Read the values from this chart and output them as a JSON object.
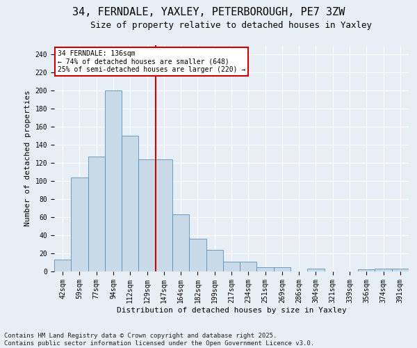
{
  "title_line1": "34, FERNDALE, YAXLEY, PETERBOROUGH, PE7 3ZW",
  "title_line2": "Size of property relative to detached houses in Yaxley",
  "xlabel": "Distribution of detached houses by size in Yaxley",
  "ylabel": "Number of detached properties",
  "categories": [
    "42sqm",
    "59sqm",
    "77sqm",
    "94sqm",
    "112sqm",
    "129sqm",
    "147sqm",
    "164sqm",
    "182sqm",
    "199sqm",
    "217sqm",
    "234sqm",
    "251sqm",
    "269sqm",
    "286sqm",
    "304sqm",
    "321sqm",
    "339sqm",
    "356sqm",
    "374sqm",
    "391sqm"
  ],
  "values": [
    13,
    104,
    127,
    200,
    150,
    124,
    124,
    63,
    36,
    24,
    11,
    11,
    5,
    5,
    0,
    3,
    0,
    0,
    2,
    3,
    3
  ],
  "bar_color": "#c8d9e8",
  "bar_edge_color": "#5b8db8",
  "vline_x": 6.0,
  "vline_color": "#cc0000",
  "annotation_text": "34 FERNDALE: 136sqm\n← 74% of detached houses are smaller (648)\n25% of semi-detached houses are larger (220) →",
  "annotation_box_color": "#ffffff",
  "annotation_box_edge": "#cc0000",
  "ylim": [
    0,
    250
  ],
  "yticks": [
    0,
    20,
    40,
    60,
    80,
    100,
    120,
    140,
    160,
    180,
    200,
    220,
    240
  ],
  "background_color": "#e8eef5",
  "grid_color": "#ffffff",
  "footer": "Contains HM Land Registry data © Crown copyright and database right 2025.\nContains public sector information licensed under the Open Government Licence v3.0.",
  "title_fontsize": 11,
  "subtitle_fontsize": 9,
  "label_fontsize": 8,
  "tick_fontsize": 7,
  "footer_fontsize": 6.5,
  "fig_width": 6.0,
  "fig_height": 5.0,
  "fig_dpi": 100
}
